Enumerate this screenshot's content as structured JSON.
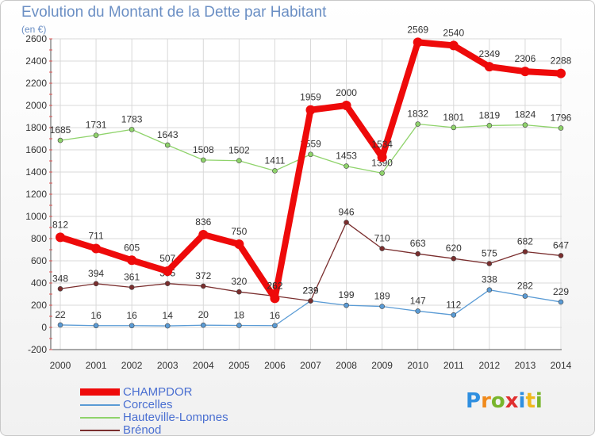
{
  "title": "Evolution du Montant de la Dette par Habitant",
  "subtitle": "(en €)",
  "logo": {
    "letters": [
      "P",
      "r",
      "o",
      "x",
      "i",
      "t",
      "i"
    ],
    "colors": [
      "#2f8fe0",
      "#f08a1c",
      "#79b52c",
      "#e02f2f",
      "#2f8fe0",
      "#f0b81c",
      "#79b52c"
    ]
  },
  "chart_data": {
    "type": "line",
    "x": [
      2000,
      2001,
      2002,
      2003,
      2004,
      2005,
      2006,
      2007,
      2008,
      2009,
      2010,
      2011,
      2012,
      2013,
      2014
    ],
    "ylim": [
      -200,
      2600
    ],
    "yticks": [
      -200,
      0,
      200,
      400,
      600,
      800,
      1000,
      1200,
      1400,
      1600,
      1800,
      2000,
      2200,
      2400,
      2600
    ],
    "grid": true,
    "legend_position": "bottom-left",
    "series": [
      {
        "name": "Corcelles",
        "color": "#5a9bd5",
        "values": [
          22,
          16,
          16,
          14,
          20,
          18,
          16,
          239,
          199,
          189,
          147,
          112,
          338,
          282,
          229
        ]
      },
      {
        "name": "Hauteville-Lompnes",
        "color": "#8fd36b",
        "values": [
          1685,
          1731,
          1783,
          1643,
          1508,
          1502,
          1411,
          1559,
          1453,
          1390,
          1832,
          1801,
          1819,
          1824,
          1796
        ]
      },
      {
        "name": "Brénod",
        "color": "#7a2e2e",
        "values": [
          348,
          394,
          361,
          395,
          372,
          320,
          282,
          239,
          946,
          710,
          663,
          620,
          575,
          682,
          647
        ]
      },
      {
        "name": "CHAMPDOR",
        "color": "#ee0a0a",
        "values": [
          812,
          711,
          605,
          507,
          836,
          750,
          262,
          1959,
          2000,
          1534,
          2569,
          2540,
          2349,
          2306,
          2288
        ]
      }
    ],
    "legend_order": [
      "CHAMPDOR",
      "Corcelles",
      "Hauteville-Lompnes",
      "Brénod"
    ]
  }
}
